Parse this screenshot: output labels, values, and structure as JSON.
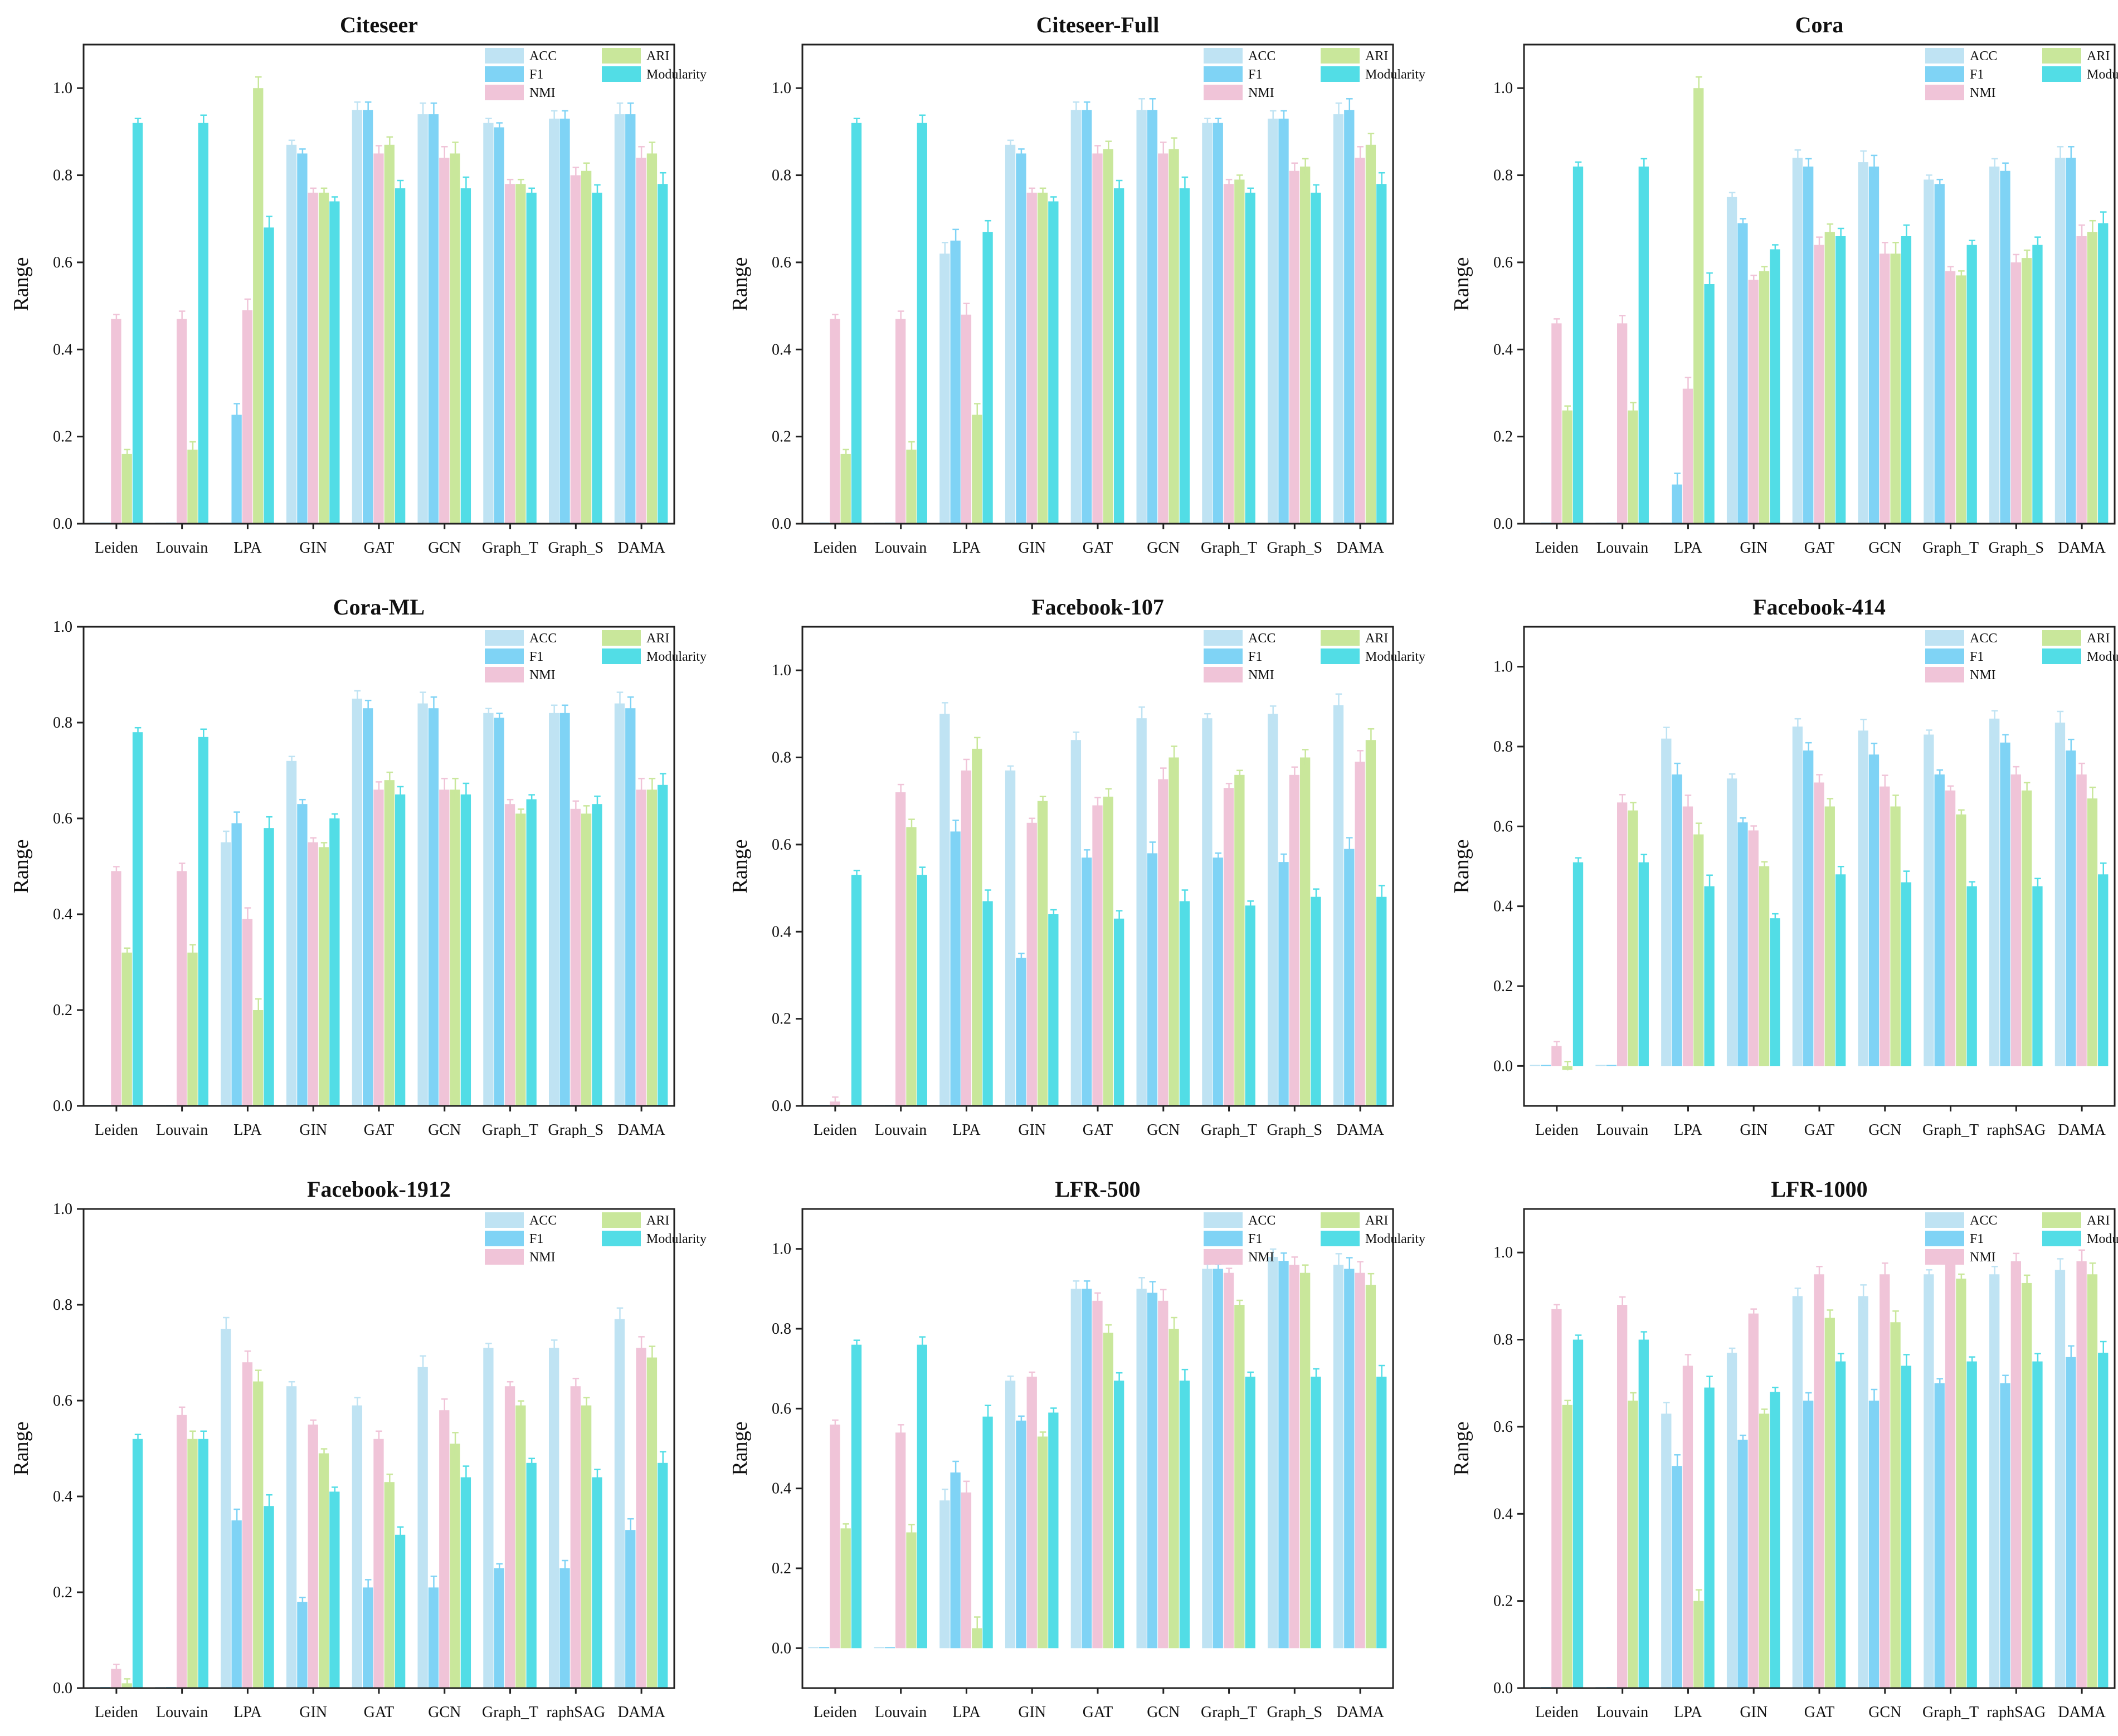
{
  "figure": {
    "colors": {
      "ACC": "#bfe3f3",
      "F1": "#7fd3f5",
      "NMI": "#f0c4d8",
      "ARI": "#c9e79b",
      "Modularity": "#52dde6"
    },
    "legend": [
      "ACC",
      "F1",
      "NMI",
      "ARI",
      "Modularity"
    ]
  },
  "chart_data": [
    {
      "type": "bar",
      "title": "Citeseer",
      "ylabel": "Range",
      "ylim": [
        0,
        1.1
      ],
      "yticks": [
        "0.0",
        "0.2",
        "0.4",
        "0.6",
        "0.8",
        "1.0"
      ],
      "legend_position": "top-right",
      "categories": [
        "Leiden",
        "Louvain",
        "LPA",
        "GIN",
        "GAT",
        "GCN",
        "Graph_T",
        "Graph_S",
        "DAMA"
      ],
      "series": [
        {
          "name": "ACC",
          "values": [
            0.0,
            0.0,
            0.0,
            0.87,
            0.95,
            0.94,
            0.92,
            0.93,
            0.94
          ]
        },
        {
          "name": "F1",
          "values": [
            0.0,
            0.0,
            0.25,
            0.85,
            0.95,
            0.94,
            0.91,
            0.93,
            0.94
          ]
        },
        {
          "name": "NMI",
          "values": [
            0.47,
            0.47,
            0.49,
            0.76,
            0.85,
            0.84,
            0.78,
            0.8,
            0.84
          ]
        },
        {
          "name": "ARI",
          "values": [
            0.16,
            0.17,
            1.0,
            0.76,
            0.87,
            0.85,
            0.78,
            0.81,
            0.85
          ]
        },
        {
          "name": "Modularity",
          "values": [
            0.92,
            0.92,
            0.68,
            0.74,
            0.77,
            0.77,
            0.76,
            0.76,
            0.78
          ]
        }
      ]
    },
    {
      "type": "bar",
      "title": "Citeseer-Full",
      "ylabel": "Range",
      "ylim": [
        0,
        1.1
      ],
      "yticks": [
        "0.0",
        "0.2",
        "0.4",
        "0.6",
        "0.8",
        "1.0"
      ],
      "legend_position": "top-right",
      "categories": [
        "Leiden",
        "Louvain",
        "LPA",
        "GIN",
        "GAT",
        "GCN",
        "Graph_T",
        "Graph_S",
        "DAMA"
      ],
      "series": [
        {
          "name": "ACC",
          "values": [
            0.0,
            0.0,
            0.62,
            0.87,
            0.95,
            0.95,
            0.92,
            0.93,
            0.94
          ]
        },
        {
          "name": "F1",
          "values": [
            0.0,
            0.0,
            0.65,
            0.85,
            0.95,
            0.95,
            0.92,
            0.93,
            0.95
          ]
        },
        {
          "name": "NMI",
          "values": [
            0.47,
            0.47,
            0.48,
            0.76,
            0.85,
            0.85,
            0.78,
            0.81,
            0.84
          ]
        },
        {
          "name": "ARI",
          "values": [
            0.16,
            0.17,
            0.25,
            0.76,
            0.86,
            0.86,
            0.79,
            0.82,
            0.87
          ]
        },
        {
          "name": "Modularity",
          "values": [
            0.92,
            0.92,
            0.67,
            0.74,
            0.77,
            0.77,
            0.76,
            0.76,
            0.78
          ]
        }
      ]
    },
    {
      "type": "bar",
      "title": "Cora",
      "ylabel": "Range",
      "ylim": [
        0,
        1.1
      ],
      "yticks": [
        "0.0",
        "0.2",
        "0.4",
        "0.6",
        "0.8",
        "1.0"
      ],
      "legend_position": "top-right",
      "categories": [
        "Leiden",
        "Louvain",
        "LPA",
        "GIN",
        "GAT",
        "GCN",
        "Graph_T",
        "Graph_S",
        "DAMA"
      ],
      "series": [
        {
          "name": "ACC",
          "values": [
            0.0,
            0.0,
            0.0,
            0.75,
            0.84,
            0.83,
            0.79,
            0.82,
            0.84
          ]
        },
        {
          "name": "F1",
          "values": [
            0.0,
            0.0,
            0.09,
            0.69,
            0.82,
            0.82,
            0.78,
            0.81,
            0.84
          ]
        },
        {
          "name": "NMI",
          "values": [
            0.46,
            0.46,
            0.31,
            0.56,
            0.64,
            0.62,
            0.58,
            0.6,
            0.66
          ]
        },
        {
          "name": "ARI",
          "values": [
            0.26,
            0.26,
            1.0,
            0.58,
            0.67,
            0.62,
            0.57,
            0.61,
            0.67
          ]
        },
        {
          "name": "Modularity",
          "values": [
            0.82,
            0.82,
            0.55,
            0.63,
            0.66,
            0.66,
            0.64,
            0.64,
            0.69
          ]
        }
      ]
    },
    {
      "type": "bar",
      "title": "Cora-ML",
      "ylabel": "Range",
      "ylim": [
        0,
        1.0
      ],
      "yticks": [
        "0.0",
        "0.2",
        "0.4",
        "0.6",
        "0.8",
        "1.0"
      ],
      "legend_position": "top-right",
      "categories": [
        "Leiden",
        "Louvain",
        "LPA",
        "GIN",
        "GAT",
        "GCN",
        "Graph_T",
        "Graph_S",
        "DAMA"
      ],
      "series": [
        {
          "name": "ACC",
          "values": [
            0.0,
            0.0,
            0.55,
            0.72,
            0.85,
            0.84,
            0.82,
            0.82,
            0.84
          ]
        },
        {
          "name": "F1",
          "values": [
            0.0,
            0.0,
            0.59,
            0.63,
            0.83,
            0.83,
            0.81,
            0.82,
            0.83
          ]
        },
        {
          "name": "NMI",
          "values": [
            0.49,
            0.49,
            0.39,
            0.55,
            0.66,
            0.66,
            0.63,
            0.62,
            0.66
          ]
        },
        {
          "name": "ARI",
          "values": [
            0.32,
            0.32,
            0.2,
            0.54,
            0.68,
            0.66,
            0.61,
            0.61,
            0.66
          ]
        },
        {
          "name": "Modularity",
          "values": [
            0.78,
            0.77,
            0.58,
            0.6,
            0.65,
            0.65,
            0.64,
            0.63,
            0.67
          ]
        }
      ]
    },
    {
      "type": "bar",
      "title": "Facebook-107",
      "ylabel": "Range",
      "ylim": [
        0,
        1.1
      ],
      "yticks": [
        "0.0",
        "0.2",
        "0.4",
        "0.6",
        "0.8",
        "1.0"
      ],
      "legend_position": "top-right",
      "categories": [
        "Leiden",
        "Louvain",
        "LPA",
        "GIN",
        "GAT",
        "GCN",
        "Graph_T",
        "Graph_S",
        "DAMA"
      ],
      "series": [
        {
          "name": "ACC",
          "values": [
            0.0,
            0.0,
            0.9,
            0.77,
            0.84,
            0.89,
            0.89,
            0.9,
            0.92
          ]
        },
        {
          "name": "F1",
          "values": [
            0.0,
            0.0,
            0.63,
            0.34,
            0.57,
            0.58,
            0.57,
            0.56,
            0.59
          ]
        },
        {
          "name": "NMI",
          "values": [
            0.01,
            0.72,
            0.77,
            0.65,
            0.69,
            0.75,
            0.73,
            0.76,
            0.79
          ]
        },
        {
          "name": "ARI",
          "values": [
            0.0,
            0.64,
            0.82,
            0.7,
            0.71,
            0.8,
            0.76,
            0.8,
            0.84
          ]
        },
        {
          "name": "Modularity",
          "values": [
            0.53,
            0.53,
            0.47,
            0.44,
            0.43,
            0.47,
            0.46,
            0.48,
            0.48
          ]
        }
      ]
    },
    {
      "type": "bar",
      "title": "Facebook-414",
      "ylabel": "Range",
      "ylim": [
        -0.1,
        1.1
      ],
      "yticks": [
        "0.0",
        "0.2",
        "0.4",
        "0.6",
        "0.8",
        "1.0"
      ],
      "legend_position": "top-right",
      "categories": [
        "Leiden",
        "Louvain",
        "LPA",
        "GIN",
        "GAT",
        "GCN",
        "Graph_T",
        "raphSAG",
        "DAMA"
      ],
      "series": [
        {
          "name": "ACC",
          "values": [
            0.0,
            0.0,
            0.82,
            0.72,
            0.85,
            0.84,
            0.83,
            0.87,
            0.86
          ]
        },
        {
          "name": "F1",
          "values": [
            0.0,
            0.0,
            0.73,
            0.61,
            0.79,
            0.78,
            0.73,
            0.81,
            0.79
          ]
        },
        {
          "name": "NMI",
          "values": [
            0.05,
            0.66,
            0.65,
            0.59,
            0.71,
            0.7,
            0.69,
            0.73,
            0.73
          ]
        },
        {
          "name": "ARI",
          "values": [
            -0.01,
            0.64,
            0.58,
            0.5,
            0.65,
            0.65,
            0.63,
            0.69,
            0.67
          ]
        },
        {
          "name": "Modularity",
          "values": [
            0.51,
            0.51,
            0.45,
            0.37,
            0.48,
            0.46,
            0.45,
            0.45,
            0.48
          ]
        }
      ]
    },
    {
      "type": "bar",
      "title": "Facebook-1912",
      "ylabel": "Range",
      "ylim": [
        0,
        1.0
      ],
      "yticks": [
        "0.0",
        "0.2",
        "0.4",
        "0.6",
        "0.8",
        "1.0"
      ],
      "legend_position": "top-right",
      "categories": [
        "Leiden",
        "Louvain",
        "LPA",
        "GIN",
        "GAT",
        "GCN",
        "Graph_T",
        "raphSAG",
        "DAMA"
      ],
      "series": [
        {
          "name": "ACC",
          "values": [
            0.0,
            0.0,
            0.75,
            0.63,
            0.59,
            0.67,
            0.71,
            0.71,
            0.77
          ]
        },
        {
          "name": "F1",
          "values": [
            0.0,
            0.0,
            0.35,
            0.18,
            0.21,
            0.21,
            0.25,
            0.25,
            0.33
          ]
        },
        {
          "name": "NMI",
          "values": [
            0.04,
            0.57,
            0.68,
            0.55,
            0.52,
            0.58,
            0.63,
            0.63,
            0.71
          ]
        },
        {
          "name": "ARI",
          "values": [
            0.01,
            0.52,
            0.64,
            0.49,
            0.43,
            0.51,
            0.59,
            0.59,
            0.69
          ]
        },
        {
          "name": "Modularity",
          "values": [
            0.52,
            0.52,
            0.38,
            0.41,
            0.32,
            0.44,
            0.47,
            0.44,
            0.47
          ]
        }
      ]
    },
    {
      "type": "bar",
      "title": "LFR-500",
      "ylabel": "Range",
      "ylim": [
        -0.1,
        1.1
      ],
      "yticks": [
        "0.0",
        "0.2",
        "0.4",
        "0.6",
        "0.8",
        "1.0"
      ],
      "legend_position": "top-right",
      "categories": [
        "Leiden",
        "Louvain",
        "LPA",
        "GIN",
        "GAT",
        "GCN",
        "Graph_T",
        "Graph_S",
        "DAMA"
      ],
      "series": [
        {
          "name": "ACC",
          "values": [
            0.0,
            0.0,
            0.37,
            0.67,
            0.9,
            0.9,
            0.95,
            0.98,
            0.96
          ]
        },
        {
          "name": "F1",
          "values": [
            0.0,
            0.0,
            0.44,
            0.57,
            0.9,
            0.89,
            0.95,
            0.97,
            0.95
          ]
        },
        {
          "name": "NMI",
          "values": [
            0.56,
            0.54,
            0.39,
            0.68,
            0.87,
            0.87,
            0.94,
            0.96,
            0.94
          ]
        },
        {
          "name": "ARI",
          "values": [
            0.3,
            0.29,
            0.05,
            0.53,
            0.79,
            0.8,
            0.86,
            0.94,
            0.91
          ]
        },
        {
          "name": "Modularity",
          "values": [
            0.76,
            0.76,
            0.58,
            0.59,
            0.67,
            0.67,
            0.68,
            0.68,
            0.68
          ]
        }
      ]
    },
    {
      "type": "bar",
      "title": "LFR-1000",
      "ylabel": "Range",
      "ylim": [
        0,
        1.1
      ],
      "yticks": [
        "0.0",
        "0.2",
        "0.4",
        "0.6",
        "0.8",
        "1.0"
      ],
      "legend_position": "top-right",
      "categories": [
        "Leiden",
        "Louvain",
        "LPA",
        "GIN",
        "GAT",
        "GCN",
        "Graph_T",
        "raphSAG",
        "DAMA"
      ],
      "series": [
        {
          "name": "ACC",
          "values": [
            0.0,
            0.0,
            0.63,
            0.77,
            0.9,
            0.9,
            0.95,
            0.95,
            0.96
          ]
        },
        {
          "name": "F1",
          "values": [
            0.0,
            0.0,
            0.51,
            0.57,
            0.66,
            0.66,
            0.7,
            0.7,
            0.76
          ]
        },
        {
          "name": "NMI",
          "values": [
            0.87,
            0.88,
            0.74,
            0.86,
            0.95,
            0.95,
            0.98,
            0.98,
            0.98
          ]
        },
        {
          "name": "ARI",
          "values": [
            0.65,
            0.66,
            0.2,
            0.63,
            0.85,
            0.84,
            0.94,
            0.93,
            0.95
          ]
        },
        {
          "name": "Modularity",
          "values": [
            0.8,
            0.8,
            0.69,
            0.68,
            0.75,
            0.74,
            0.75,
            0.75,
            0.77
          ]
        }
      ]
    }
  ]
}
